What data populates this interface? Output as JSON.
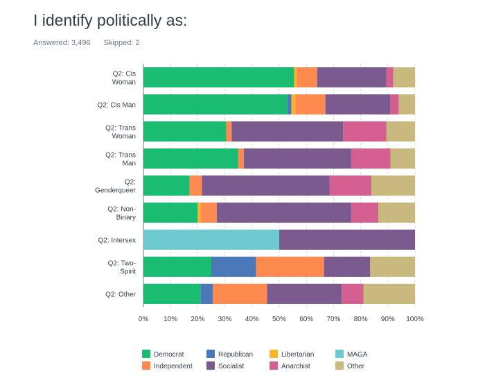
{
  "header": {
    "title": "I identify politically as:",
    "answered": "Answered: 3,496",
    "skipped": "Skipped: 2"
  },
  "chart_data": {
    "type": "bar",
    "orientation": "horizontal",
    "stacked": true,
    "percent": true,
    "xlim": [
      0,
      100
    ],
    "x_ticks": [
      "0%",
      "10%",
      "20%",
      "30%",
      "40%",
      "50%",
      "60%",
      "70%",
      "80%",
      "90%",
      "100%"
    ],
    "grid": "vertical dashed",
    "legend_position": "bottom",
    "categories": [
      [
        "Q2: Cis",
        "Woman"
      ],
      [
        "Q2: Cis Man"
      ],
      [
        "Q2: Trans",
        "Woman"
      ],
      [
        "Q2: Trans",
        "Man"
      ],
      [
        "Q2:",
        "Genderqueer"
      ],
      [
        "Q2: Non-",
        "Binary"
      ],
      [
        "Q2: Intersex"
      ],
      [
        "Q2: Two-",
        "Spirit"
      ],
      [
        "Q2: Other"
      ]
    ],
    "series": [
      {
        "name": "Democrat",
        "color": "#1abc71",
        "values": [
          55.5,
          53,
          30.5,
          35,
          17,
          20,
          0,
          25,
          21
        ]
      },
      {
        "name": "Republican",
        "color": "#4a78b8",
        "values": [
          0,
          1.5,
          0,
          0,
          0,
          0,
          0,
          16.5,
          4.5
        ]
      },
      {
        "name": "Libertarian",
        "color": "#f7b62b",
        "values": [
          1,
          1.5,
          0,
          0,
          0,
          1,
          0,
          0,
          0
        ]
      },
      {
        "name": "MAGA",
        "color": "#6ecad1",
        "values": [
          0,
          0,
          0,
          0,
          0,
          0,
          50,
          0,
          0
        ]
      },
      {
        "name": "Independent",
        "color": "#ff8a4f",
        "values": [
          7.5,
          11,
          2,
          2,
          4.5,
          6,
          0,
          25,
          20
        ]
      },
      {
        "name": "Socialist",
        "color": "#7b5b8f",
        "values": [
          25.5,
          24,
          41,
          39.5,
          47,
          49.5,
          50,
          17,
          27.5
        ]
      },
      {
        "name": "Anarchist",
        "color": "#d65f91",
        "values": [
          2.5,
          3,
          16,
          14.5,
          15.5,
          10,
          0,
          0,
          8
        ]
      },
      {
        "name": "Other",
        "color": "#c9b97f",
        "values": [
          8,
          6,
          10.5,
          9,
          16,
          13.5,
          0,
          16.5,
          19
        ]
      }
    ]
  }
}
